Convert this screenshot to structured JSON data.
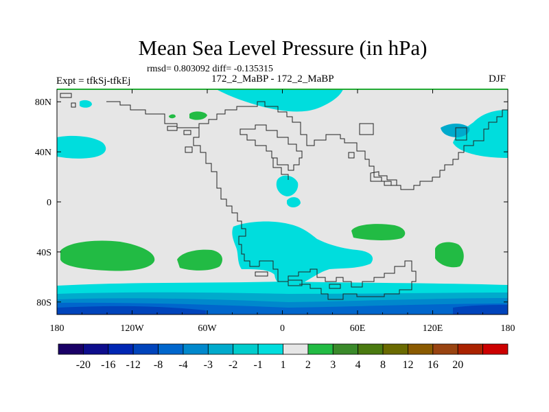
{
  "title": "Mean Sea Level Pressure (in hPa)",
  "stats": "rmsd= 0.803092 diff= -0.135315",
  "left_label": "Expt = tfkSj-tfkEj",
  "center_label": "172_2_MaBP - 172_2_MaBP",
  "right_label": "DJF",
  "chart_data": {
    "type": "contour-map",
    "field": "Mean Sea Level Pressure difference",
    "units": "hPa",
    "season": "DJF",
    "x_axis": {
      "range": [
        -180,
        180
      ],
      "ticks": [
        "180",
        "120W",
        "60W",
        "0",
        "60E",
        "120E",
        "180"
      ]
    },
    "y_axis": {
      "range": [
        -90,
        90
      ],
      "ticks": [
        "80N",
        "40N",
        "0",
        "40S",
        "80S"
      ]
    },
    "colorbar": {
      "levels": [
        "-20",
        "-16",
        "-12",
        "-8",
        "-4",
        "-3",
        "-2",
        "-1",
        "1",
        "2",
        "3",
        "4",
        "8",
        "12",
        "16",
        "20"
      ],
      "colors": [
        "#1a0066",
        "#0d0d8c",
        "#0026b3",
        "#0044bb",
        "#0066cc",
        "#0088cc",
        "#00aacc",
        "#00cccc",
        "#00dddd",
        "#e6e6e6",
        "#22bb44",
        "#3a8a2a",
        "#4a7a10",
        "#6a6a00",
        "#8a5a00",
        "#994411",
        "#aa2200",
        "#cc0000"
      ]
    }
  }
}
